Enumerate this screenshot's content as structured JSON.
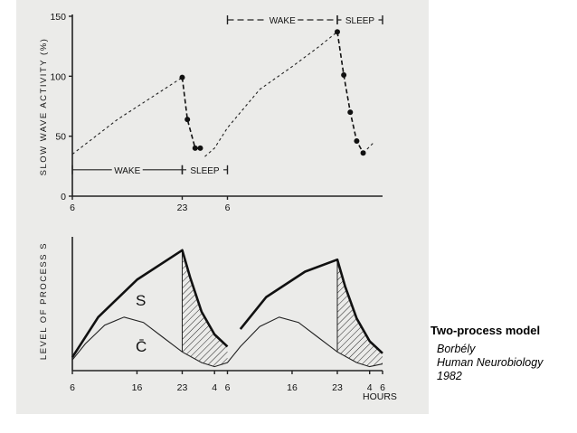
{
  "caption": {
    "title": "Two-process model",
    "lines": [
      "Borbély",
      "Human Neurobiology",
      "1982"
    ]
  },
  "colors": {
    "paper": "#ebebe9",
    "ink": "#111111"
  },
  "chart_data": [
    {
      "type": "scatter",
      "ylabel": "SLOW WAVE ACTIVITY (%)",
      "xlabel": "",
      "ylim": [
        0,
        150
      ],
      "yticks": [
        0,
        50,
        100,
        150
      ],
      "xtick_labels": [
        "6",
        "23",
        "6"
      ],
      "grid": false,
      "state_bars": [
        {
          "label": "WAKE",
          "position": "top",
          "range_h": [
            0,
            17
          ]
        },
        {
          "label": "SLEEP",
          "position": "top",
          "range_h": [
            17,
            24
          ]
        },
        {
          "label": "WAKE",
          "position": "lower-left",
          "range_h": [
            -24,
            -7
          ]
        },
        {
          "label": "SLEEP",
          "position": "lower-left",
          "range_h": [
            -7,
            0
          ]
        }
      ],
      "series": [
        {
          "points": [
            [
              -7,
              99
            ],
            [
              -6.2,
              64
            ],
            [
              -5,
              40
            ],
            [
              -4.2,
              40
            ]
          ]
        },
        {
          "points": [
            [
              17,
              137
            ],
            [
              18,
              101
            ],
            [
              19,
              70
            ],
            [
              20,
              46
            ],
            [
              21,
              36
            ]
          ]
        }
      ],
      "dashed_trend": [
        [
          [
            -24,
            35
          ],
          [
            -17,
            64
          ],
          [
            -7,
            99
          ]
        ],
        [
          [
            -3.5,
            33
          ],
          [
            -2,
            40
          ],
          [
            0,
            57
          ],
          [
            5,
            89
          ],
          [
            10,
            108
          ],
          [
            14,
            124
          ],
          [
            17,
            137
          ]
        ],
        [
          [
            21,
            36
          ],
          [
            22.5,
            44
          ]
        ]
      ]
    },
    {
      "type": "line",
      "ylabel": "LEVEL OF PROCESS S",
      "xlabel": "HOURS",
      "xtick_labels": [
        "6",
        "16",
        "23",
        "4",
        "6",
        "16",
        "23",
        "4",
        "6"
      ],
      "grid": false,
      "labels": [
        "S",
        "C̄"
      ],
      "series": [
        {
          "points": [
            [
              0,
              0.1
            ],
            [
              4,
              0.4
            ],
            [
              10,
              0.68
            ],
            [
              17,
              0.9
            ],
            [
              18.2,
              0.7
            ],
            [
              20,
              0.44
            ],
            [
              22,
              0.27
            ],
            [
              24,
              0.18
            ],
            [
              26,
              0.31
            ],
            [
              30,
              0.55
            ],
            [
              36,
              0.74
            ],
            [
              41,
              0.83
            ],
            [
              42.2,
              0.63
            ],
            [
              44,
              0.39
            ],
            [
              46,
              0.22
            ],
            [
              48,
              0.13
            ]
          ]
        },
        {
          "points": [
            [
              0,
              0.08
            ],
            [
              2,
              0.2
            ],
            [
              5,
              0.34
            ],
            [
              8,
              0.4
            ],
            [
              11,
              0.36
            ],
            [
              14,
              0.25
            ],
            [
              17,
              0.14
            ],
            [
              20,
              0.06
            ],
            [
              22,
              0.03
            ],
            [
              24,
              0.06
            ],
            [
              26,
              0.18
            ],
            [
              29,
              0.33
            ],
            [
              32,
              0.4
            ],
            [
              35,
              0.36
            ],
            [
              38,
              0.25
            ],
            [
              41,
              0.14
            ],
            [
              44,
              0.06
            ],
            [
              46,
              0.03
            ],
            [
              48,
              0.05
            ]
          ]
        }
      ]
    }
  ]
}
